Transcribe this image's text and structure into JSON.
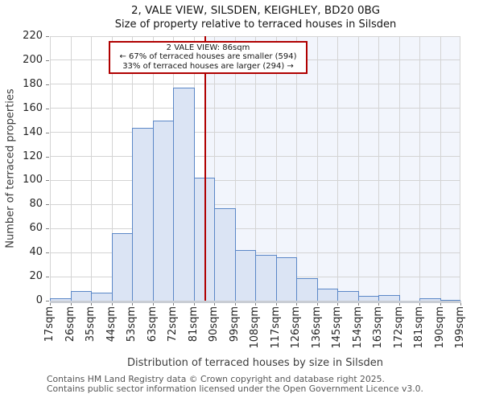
{
  "title": "2, VALE VIEW, SILSDEN, KEIGHLEY, BD20 0BG",
  "subtitle": "Size of property relative to terraced houses in Silsden",
  "annotation": {
    "line1": "2 VALE VIEW: 86sqm",
    "line2": "← 67% of terraced houses are smaller (594)",
    "line3": "33% of terraced houses are larger (294) →"
  },
  "chart_data": {
    "type": "bar",
    "title": "2, VALE VIEW, SILSDEN, KEIGHLEY, BD20 0BG",
    "subtitle": "Size of property relative to terraced houses in Silsden",
    "xlabel": "Distribution of terraced houses by size in Silsden",
    "ylabel": "Number of terraced properties",
    "bin_labels": [
      "17sqm",
      "26sqm",
      "35sqm",
      "44sqm",
      "53sqm",
      "63sqm",
      "72sqm",
      "81sqm",
      "90sqm",
      "99sqm",
      "108sqm",
      "117sqm",
      "126sqm",
      "136sqm",
      "145sqm",
      "154sqm",
      "163sqm",
      "172sqm",
      "181sqm",
      "190sqm",
      "199sqm"
    ],
    "bin_edges_sqm": [
      17,
      26,
      35,
      44,
      53,
      63,
      72,
      81,
      90,
      99,
      108,
      117,
      126,
      136,
      145,
      154,
      163,
      172,
      181,
      190,
      199
    ],
    "values": [
      2,
      8,
      7,
      56,
      144,
      150,
      177,
      102,
      77,
      42,
      38,
      36,
      19,
      10,
      8,
      4,
      5,
      0,
      2,
      1
    ],
    "ylim": [
      0,
      220
    ],
    "ytick_step": 20,
    "grid": true,
    "legend": "none",
    "marker_value_sqm": 86,
    "marker_color": "#b00000",
    "bar_fill": "#dbe4f4",
    "bar_edge": "#5b87c7",
    "shade_color": "#f2f5fc",
    "grid_color": "#d4d4d4"
  },
  "footer": {
    "line1": "Contains HM Land Registry data © Crown copyright and database right 2025.",
    "line2": "Contains public sector information licensed under the Open Government Licence v3.0."
  }
}
